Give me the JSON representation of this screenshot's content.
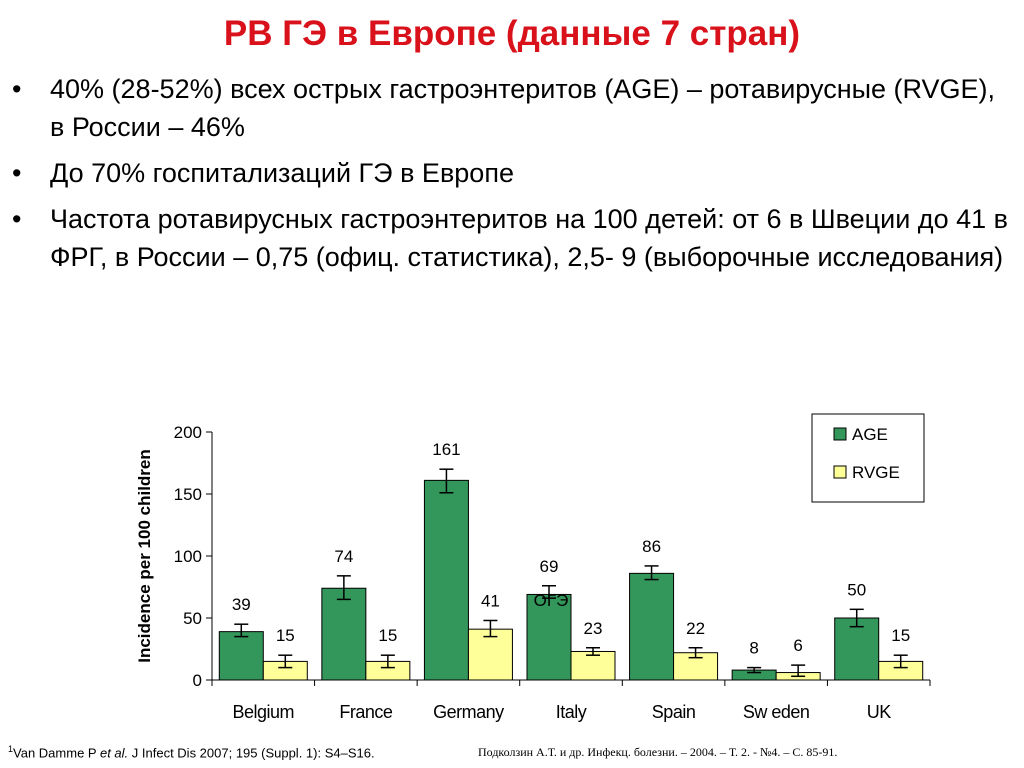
{
  "slide": {
    "title": "РВ ГЭ в Европе (данные 7 стран)",
    "bullets": [
      "40% (28-52%) всех острых гастроэнтеритов (AGE) – ротавирусные (RVGE), в России – 46%",
      "До 70% госпитализаций ГЭ в Европе",
      "Частота ротавирусных гастроэнтеритов на 100 детей: от 6 в Швеции до 41 в ФРГ, в России –  0,75 (офиц. статистика), 2,5- 9 (выборочные исследования)"
    ],
    "bullet_glyph": "•",
    "footnote_left": {
      "sup": "1",
      "author": "Van Damme P ",
      "etal": "et al.",
      "rest": " J Infect Dis 2007; 195 (Suppl. 1): S4–S16."
    },
    "footnote_right": "Подколзин А.Т. и др. Инфекц. болезни. – 2004. – Т. 2. - №4. – С. 85-91."
  },
  "chart_data": {
    "type": "bar",
    "ylabel": "Incidence per 100 children",
    "ylim": [
      0,
      200
    ],
    "yticks": [
      0,
      50,
      100,
      150,
      200
    ],
    "categories": [
      "Belgium",
      "France",
      "Germany",
      "Italy",
      "Spain",
      "Sw eden",
      "UK"
    ],
    "series": [
      {
        "name": "AGE",
        "color": "#33965a",
        "values": [
          39,
          74,
          161,
          69,
          86,
          8,
          50
        ],
        "error_low": [
          35,
          65,
          151,
          66,
          81,
          6,
          43
        ],
        "error_high": [
          45,
          84,
          170,
          76,
          92,
          10,
          57
        ]
      },
      {
        "name": "RVGE",
        "color": "#ffff99",
        "values": [
          15,
          15,
          41,
          23,
          22,
          6,
          15
        ],
        "error_low": [
          10,
          10,
          35,
          20,
          18,
          3,
          10
        ],
        "error_high": [
          20,
          20,
          48,
          26,
          26,
          12,
          20
        ]
      }
    ],
    "data_labels": [
      "39",
      "15",
      "74",
      "15",
      "161",
      "41",
      "69",
      "23",
      "86",
      "22",
      "8",
      "6",
      "50",
      "15"
    ],
    "annotation": "ОГЭ",
    "legend_position": "top-right",
    "grid": false
  }
}
